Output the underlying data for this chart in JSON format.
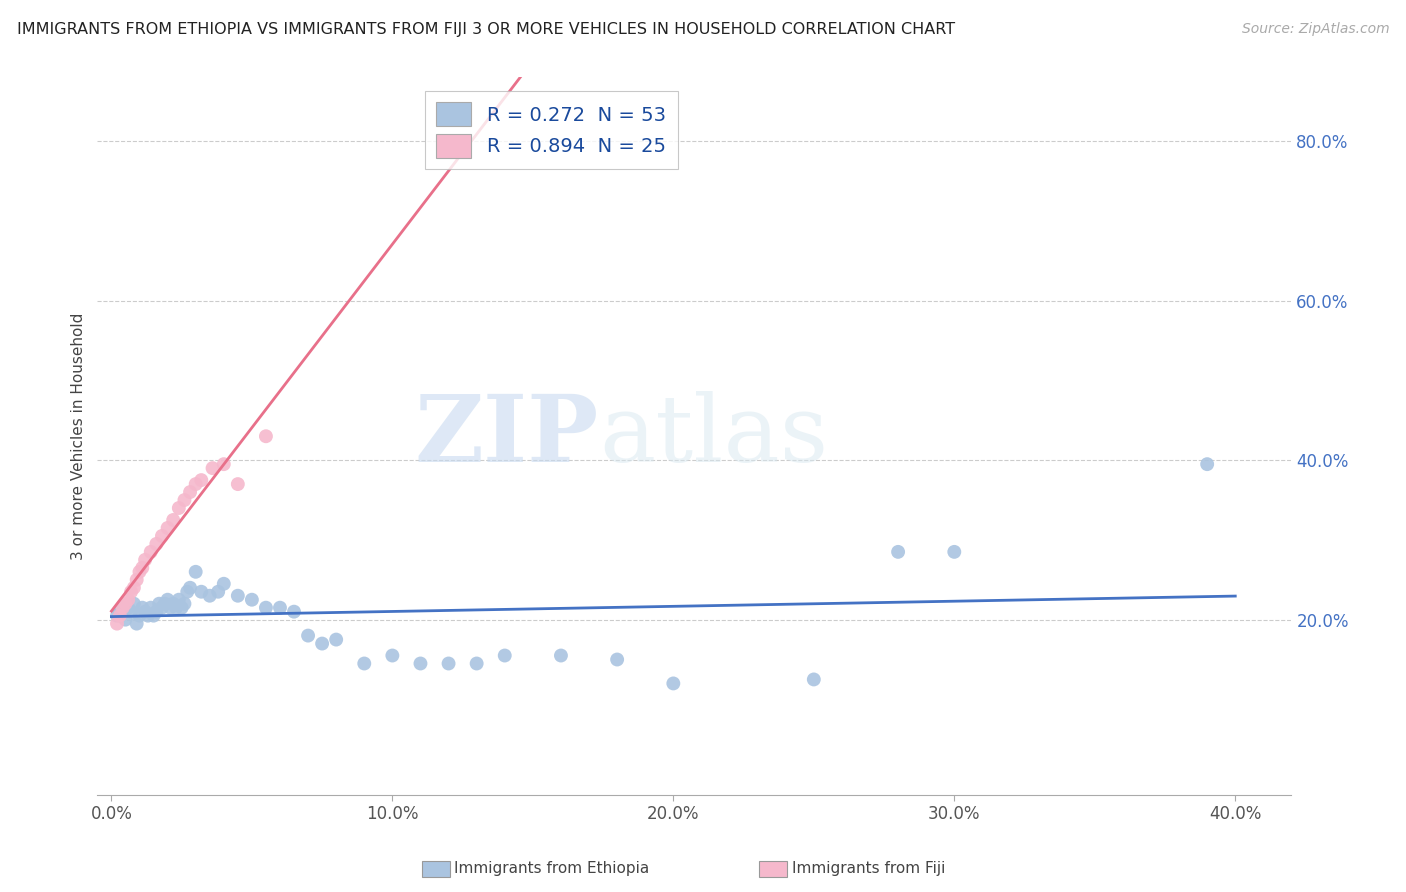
{
  "title": "IMMIGRANTS FROM ETHIOPIA VS IMMIGRANTS FROM FIJI 3 OR MORE VEHICLES IN HOUSEHOLD CORRELATION CHART",
  "source": "Source: ZipAtlas.com",
  "ylabel": "3 or more Vehicles in Household",
  "xlabel_ethiopia": "Immigrants from Ethiopia",
  "xlabel_fiji": "Immigrants from Fiji",
  "xlim": [
    -0.005,
    0.42
  ],
  "ylim": [
    -0.02,
    0.88
  ],
  "xticks": [
    0.0,
    0.1,
    0.2,
    0.3,
    0.4
  ],
  "xtick_labels": [
    "0.0%",
    "10.0%",
    "20.0%",
    "30.0%",
    "40.0%"
  ],
  "yticks": [
    0.2,
    0.4,
    0.6,
    0.8
  ],
  "ytick_labels": [
    "20.0%",
    "40.0%",
    "60.0%",
    "80.0%"
  ],
  "R_ethiopia": 0.272,
  "N_ethiopia": 53,
  "R_fiji": 0.894,
  "N_fiji": 25,
  "color_ethiopia": "#aac4e0",
  "color_fiji": "#f5b8cc",
  "line_color_ethiopia": "#4472c4",
  "line_color_fiji": "#e8708a",
  "watermark_zip": "ZIP",
  "watermark_atlas": "atlas",
  "ethiopia_x": [
    0.002,
    0.003,
    0.004,
    0.005,
    0.006,
    0.007,
    0.008,
    0.009,
    0.01,
    0.011,
    0.012,
    0.013,
    0.014,
    0.015,
    0.016,
    0.017,
    0.018,
    0.019,
    0.02,
    0.021,
    0.022,
    0.023,
    0.024,
    0.025,
    0.026,
    0.027,
    0.028,
    0.03,
    0.032,
    0.035,
    0.038,
    0.04,
    0.045,
    0.05,
    0.055,
    0.06,
    0.065,
    0.07,
    0.075,
    0.08,
    0.09,
    0.1,
    0.11,
    0.12,
    0.13,
    0.14,
    0.16,
    0.18,
    0.2,
    0.25,
    0.28,
    0.3,
    0.39
  ],
  "ethiopia_y": [
    0.205,
    0.21,
    0.215,
    0.2,
    0.215,
    0.21,
    0.22,
    0.195,
    0.205,
    0.215,
    0.21,
    0.205,
    0.215,
    0.205,
    0.21,
    0.22,
    0.215,
    0.22,
    0.225,
    0.215,
    0.22,
    0.215,
    0.225,
    0.215,
    0.22,
    0.235,
    0.24,
    0.26,
    0.235,
    0.23,
    0.235,
    0.245,
    0.23,
    0.225,
    0.215,
    0.215,
    0.21,
    0.18,
    0.17,
    0.175,
    0.145,
    0.155,
    0.145,
    0.145,
    0.145,
    0.155,
    0.155,
    0.15,
    0.12,
    0.125,
    0.285,
    0.285,
    0.395
  ],
  "fiji_x": [
    0.002,
    0.003,
    0.004,
    0.005,
    0.006,
    0.007,
    0.008,
    0.009,
    0.01,
    0.011,
    0.012,
    0.014,
    0.016,
    0.018,
    0.02,
    0.022,
    0.024,
    0.026,
    0.028,
    0.03,
    0.032,
    0.036,
    0.04,
    0.045,
    0.055
  ],
  "fiji_y": [
    0.195,
    0.205,
    0.215,
    0.22,
    0.225,
    0.235,
    0.24,
    0.25,
    0.26,
    0.265,
    0.275,
    0.285,
    0.295,
    0.305,
    0.315,
    0.325,
    0.34,
    0.35,
    0.36,
    0.37,
    0.375,
    0.39,
    0.395,
    0.37,
    0.43
  ]
}
